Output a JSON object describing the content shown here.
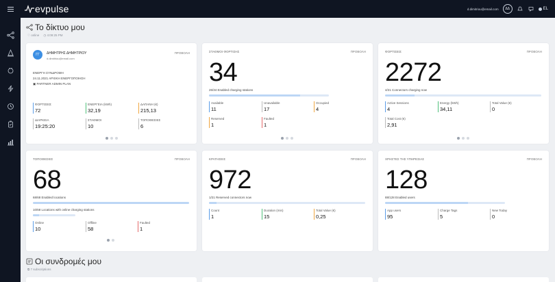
{
  "topbar": {
    "logo_text": "evpulse",
    "user_email": "d.dimitriou@email.com",
    "avatar_initials": "ΔΔ",
    "lang": "EL"
  },
  "sidebar": {
    "items": [
      "network-icon",
      "location-icon",
      "plug-icon",
      "bolt-icon",
      "clock-icon",
      "reservation-icon",
      "chart-icon"
    ]
  },
  "page": {
    "title": "Το δίκτυο μου",
    "status": "online",
    "time": "4:09:25 PM"
  },
  "profile": {
    "initials": "ΓΓ",
    "name": "ΔΗΜΗΤΡΗΣ ΔΗΜΗΤΡΙΟΥ",
    "email": "d.dimitriou@email.com",
    "view": "ΠΡΟΒΟΛΗ",
    "subscription": "ΕΝΕΡΓΗ ΣΥΝΔΡΟΜΗ",
    "start": "24.11.2021 ΑΡΧΙΚΗ ΕΝΕΡΓΟΠΟΙΗΣΗ",
    "plan": "PARTNER ADMIN PLAN",
    "stats": [
      {
        "label": "ΦΟΡΤΙΣΕΙΣ",
        "value": "72"
      },
      {
        "label": "ΕΝΕΡΓΕΙΑ (kWh)",
        "value": "32,19"
      },
      {
        "label": "ΔΑΠΑΝΗ (€)",
        "value": "215,13"
      },
      {
        "label": "ΔΙΑΡΚΕΙΑ",
        "value": "19:25:20"
      },
      {
        "label": "ΣΤΑΘΜΟΙ",
        "value": "10"
      },
      {
        "label": "ΤΟΠΟΘΕΣΙΕΣ",
        "value": "6"
      }
    ]
  },
  "stations": {
    "title": "ΣΤΑΘΜΟΙ ΦΟΡΤΙΣΗΣ",
    "view": "ΠΡΟΒΟΛΗ",
    "big": "34",
    "caption": "26/34 Enabled charging stations",
    "progress": 0.76,
    "stats": [
      {
        "label": "Available",
        "value": "11"
      },
      {
        "label": "Unavailable",
        "value": "17"
      },
      {
        "label": "Occupied",
        "value": "4"
      },
      {
        "label": "Reserved",
        "value": "1"
      },
      {
        "label": "Faulted",
        "value": "1"
      }
    ]
  },
  "charges": {
    "title": "ΦΟΡΤΙΣΕΙΣ",
    "view": "ΠΡΟΒΟΛΗ",
    "big": "2272",
    "caption": "4/21 Connectors charging now",
    "progress": 0.19,
    "stats": [
      {
        "label": "Active Sessions",
        "value": "4"
      },
      {
        "label": "Energy (kWh)",
        "value": "34,11"
      },
      {
        "label": "Total Value (€)",
        "value": "0"
      },
      {
        "label": "Total Cost (€)",
        "value": "2,91"
      }
    ]
  },
  "locations": {
    "title": "ΤΟΠΟΘΕΣΙΕΣ",
    "view": "ΠΡΟΒΟΛΗ",
    "big": "68",
    "caption": "68/68 Enabled locations",
    "progress": 1.0,
    "caption2": "10/68 Locations with online charging stations",
    "progress2": 0.15,
    "stats": [
      {
        "label": "Online",
        "value": "10"
      },
      {
        "label": "Offline",
        "value": "58"
      },
      {
        "label": "Faulted",
        "value": "1"
      }
    ]
  },
  "reservations": {
    "title": "ΚΡΑΤΗΣΕΙΣ",
    "view": "ΠΡΟΒΟΛΗ",
    "big": "972",
    "caption": "1/21 Reserved connectors now",
    "progress": 0.05,
    "stats": [
      {
        "label": "Count",
        "value": "1"
      },
      {
        "label": "Duration (min)",
        "value": "15"
      },
      {
        "label": "Total Value (€)",
        "value": "0,25"
      }
    ]
  },
  "users": {
    "title": "ΧΡΗΣΤΕΣ ΤΗΣ ΥΠΗΡΕΣΙΑΣ",
    "view": "ΠΡΟΒΟΛΗ",
    "big": "128",
    "caption": "88/128 Enabled users",
    "progress": 0.69,
    "stats": [
      {
        "label": "App users",
        "value": "95"
      },
      {
        "label": "Charge Tags",
        "value": "5"
      },
      {
        "label": "New Today",
        "value": "0"
      }
    ]
  },
  "subscriptions": {
    "title": "Οι συνδρομές μου",
    "count": "7 subscriptions"
  },
  "colors": {
    "topbar": "#0f1522",
    "accent_blue": "#5b9de8",
    "progress": "#bcd6f5"
  }
}
